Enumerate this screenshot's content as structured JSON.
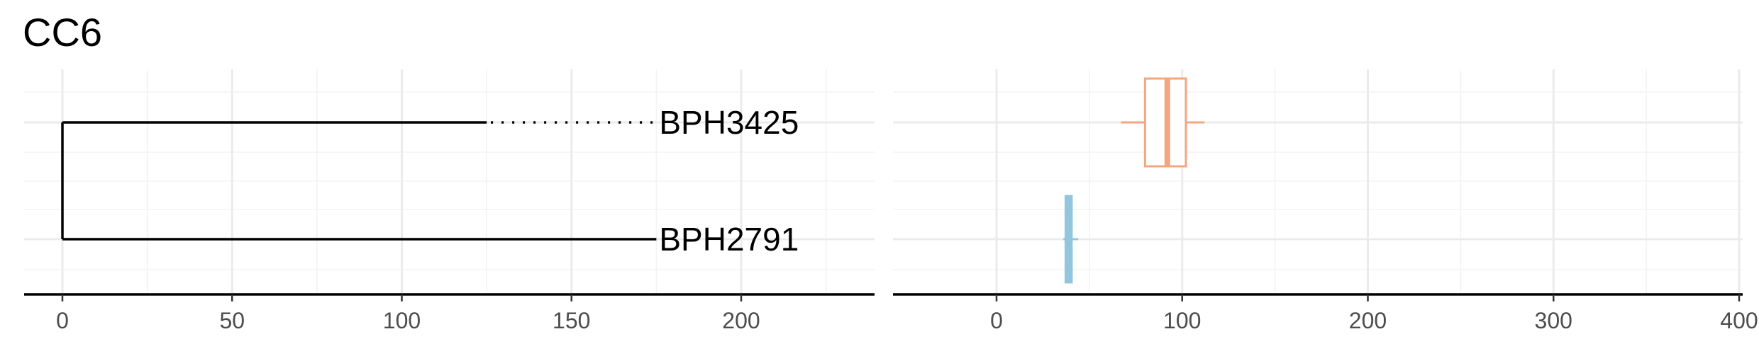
{
  "title": "CC6",
  "chart_data": [
    {
      "type": "tree",
      "xlim": [
        -11,
        239
      ],
      "xticks": [
        0,
        50,
        100,
        150,
        200
      ],
      "grid": true,
      "tips": [
        {
          "label": "BPH3425",
          "branch_end": 125,
          "label_x": 175,
          "dotted_extension": true
        },
        {
          "label": "BPH2791",
          "branch_end": 175,
          "label_x": 175,
          "dotted_extension": false
        }
      ],
      "root_x": 0
    },
    {
      "type": "boxplot",
      "xlim": [
        -56,
        400
      ],
      "xticks": [
        0,
        100,
        200,
        300,
        400
      ],
      "grid": true,
      "series": [
        {
          "row": "BPH3425",
          "min": 67,
          "q1": 80,
          "median": 92,
          "q3": 102,
          "max": 112,
          "color": "#f4a582"
        },
        {
          "row": "BPH2791",
          "min": 36,
          "q1": 38,
          "median": 40,
          "q3": 42,
          "max": 44,
          "color": "#92c5de"
        }
      ]
    }
  ]
}
